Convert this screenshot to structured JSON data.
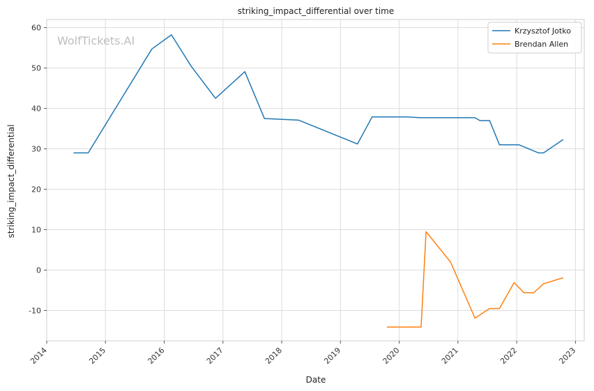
{
  "chart_data": {
    "type": "line",
    "title": "striking_impact_differential over time",
    "xlabel": "Date",
    "ylabel": "striking_impact_differential",
    "watermark": "WolfTickets.AI",
    "xlim": [
      2014.0,
      2023.15
    ],
    "ylim": [
      -17.5,
      62
    ],
    "x_ticks": [
      2014,
      2015,
      2016,
      2017,
      2018,
      2019,
      2020,
      2021,
      2022,
      2023
    ],
    "y_ticks": [
      -10,
      0,
      10,
      20,
      30,
      40,
      50,
      60
    ],
    "grid": true,
    "legend_position": "top-right",
    "series": [
      {
        "name": "Krzysztof Jotko",
        "color": "#1f77b4",
        "points": [
          {
            "x": "2014-06",
            "y": 29
          },
          {
            "x": "2014-09",
            "y": 29
          },
          {
            "x": "2015-10",
            "y": 54.7
          },
          {
            "x": "2016-02",
            "y": 58.2
          },
          {
            "x": "2016-06",
            "y": 50.5
          },
          {
            "x": "2016-11",
            "y": 42.5
          },
          {
            "x": "2017-05",
            "y": 49.1
          },
          {
            "x": "2017-09",
            "y": 37.5
          },
          {
            "x": "2018-04",
            "y": 37.1
          },
          {
            "x": "2019-04",
            "y": 31.2
          },
          {
            "x": "2019-07",
            "y": 37.9
          },
          {
            "x": "2020-02",
            "y": 37.9
          },
          {
            "x": "2020-05",
            "y": 37.7
          },
          {
            "x": "2021-04",
            "y": 37.7
          },
          {
            "x": "2021-05",
            "y": 37.0
          },
          {
            "x": "2021-07",
            "y": 37.0
          },
          {
            "x": "2021-09",
            "y": 31.0
          },
          {
            "x": "2022-01",
            "y": 31.0
          },
          {
            "x": "2022-05",
            "y": 29.0
          },
          {
            "x": "2022-06",
            "y": 29.0
          },
          {
            "x": "2022-10",
            "y": 32.3
          }
        ]
      },
      {
        "name": "Brendan Allen",
        "color": "#ff7f0e",
        "points": [
          {
            "x": "2019-10",
            "y": -14.1
          },
          {
            "x": "2020-05",
            "y": -14.1
          },
          {
            "x": "2020-06",
            "y": 9.5
          },
          {
            "x": "2020-11",
            "y": 2.0
          },
          {
            "x": "2021-04",
            "y": -11.9
          },
          {
            "x": "2021-07",
            "y": -9.5
          },
          {
            "x": "2021-09",
            "y": -9.5
          },
          {
            "x": "2021-12",
            "y": -3.1
          },
          {
            "x": "2022-02",
            "y": -5.6
          },
          {
            "x": "2022-04",
            "y": -5.6
          },
          {
            "x": "2022-06",
            "y": -3.4
          },
          {
            "x": "2022-10",
            "y": -1.9
          }
        ]
      }
    ]
  }
}
